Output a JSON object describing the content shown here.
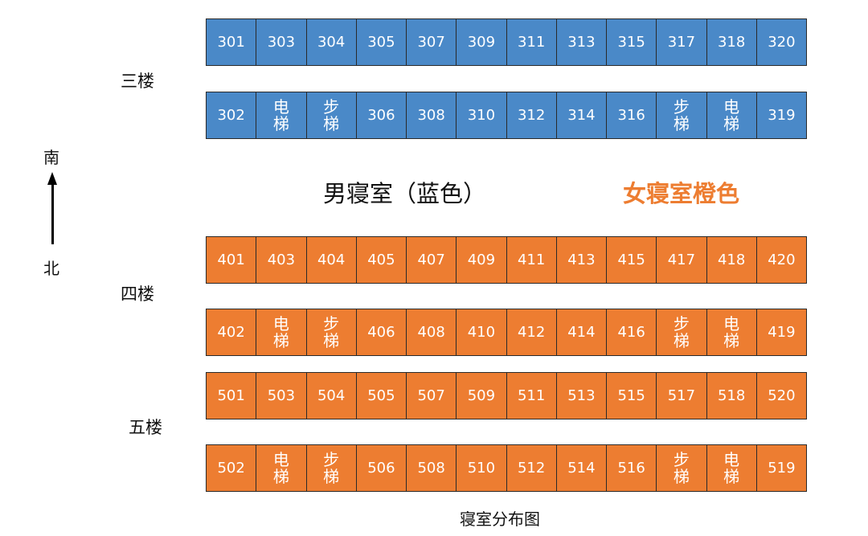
{
  "floors": {
    "f3": {
      "label": "三楼",
      "north": [
        "301",
        "303",
        "304",
        "305",
        "307",
        "309",
        "311",
        "313",
        "315",
        "317",
        "318",
        "320"
      ],
      "south": [
        [
          "302"
        ],
        [
          "电",
          "梯"
        ],
        [
          "步",
          "梯"
        ],
        [
          "306"
        ],
        [
          "308"
        ],
        [
          "310"
        ],
        [
          "312"
        ],
        [
          "314"
        ],
        [
          "316"
        ],
        [
          "步",
          "梯"
        ],
        [
          "电",
          "梯"
        ],
        [
          "319"
        ]
      ]
    },
    "f4": {
      "label": "四楼",
      "north": [
        "401",
        "403",
        "404",
        "405",
        "407",
        "409",
        "411",
        "413",
        "415",
        "417",
        "418",
        "420"
      ],
      "south": [
        [
          "402"
        ],
        [
          "电",
          "梯"
        ],
        [
          "步",
          "梯"
        ],
        [
          "406"
        ],
        [
          "408"
        ],
        [
          "410"
        ],
        [
          "412"
        ],
        [
          "414"
        ],
        [
          "416"
        ],
        [
          "步",
          "梯"
        ],
        [
          "电",
          "梯"
        ],
        [
          "419"
        ]
      ]
    },
    "f5": {
      "label": "五楼",
      "north": [
        "501",
        "503",
        "504",
        "505",
        "507",
        "509",
        "511",
        "513",
        "515",
        "517",
        "518",
        "520"
      ],
      "south": [
        [
          "502"
        ],
        [
          "电",
          "梯"
        ],
        [
          "步",
          "梯"
        ],
        [
          "506"
        ],
        [
          "508"
        ],
        [
          "510"
        ],
        [
          "512"
        ],
        [
          "514"
        ],
        [
          "516"
        ],
        [
          "步",
          "梯"
        ],
        [
          "电",
          "梯"
        ],
        [
          "519"
        ]
      ]
    }
  },
  "compass": {
    "top": "南",
    "bottom": "北"
  },
  "legend": {
    "male": "男寝室（蓝色）",
    "female": "女寝室橙色"
  },
  "caption": "寝室分布图",
  "colors": {
    "male": "#4a89c8",
    "female": "#ed7d31"
  }
}
